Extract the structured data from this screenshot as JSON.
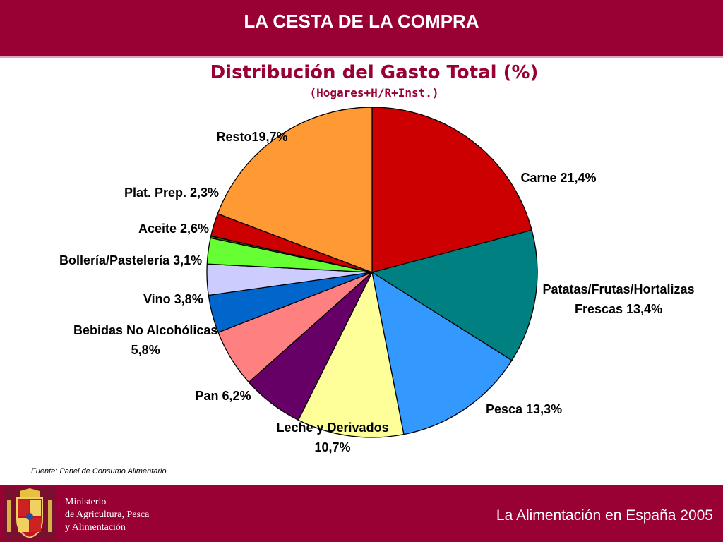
{
  "header": {
    "title": "LA CESTA DE LA COMPRA"
  },
  "chart_data": {
    "type": "pie",
    "title": "Distribución del Gasto Total (%)",
    "subtitle": "(Hogares+H/R+Inst.)",
    "slices": [
      {
        "label": "Carne 21,4%",
        "value": 21.4,
        "color": "#CC0000"
      },
      {
        "label": "Patatas/Frutas/Hortalizas Frescas 13,4%",
        "label_lines": [
          "Patatas/Frutas/Hortalizas",
          "Frescas 13,4%"
        ],
        "value": 13.4,
        "color": "#008080"
      },
      {
        "label": "Pesca 13,3%",
        "value": 13.3,
        "color": "#3399FF"
      },
      {
        "label": "Leche y Derivados 10,7%",
        "label_lines": [
          "Leche y Derivados",
          "10,7%"
        ],
        "value": 10.7,
        "color": "#FFFF99"
      },
      {
        "label": "Pan 6,2%",
        "value": 6.2,
        "color": "#660066"
      },
      {
        "label": "Bebidas No Alcohólicas 5,8%",
        "label_lines": [
          "Bebidas No Alcohólicas",
          "5,8%"
        ],
        "value": 5.8,
        "color": "#FF8080"
      },
      {
        "label": "Vino 3,8%",
        "value": 3.8,
        "color": "#0066CC"
      },
      {
        "label": "Bollería/Pastelería 3,1%",
        "value": 3.1,
        "color": "#CCCCFF"
      },
      {
        "label": "Aceite 2,6%",
        "value": 2.6,
        "color": "#66FF33"
      },
      {
        "label": "",
        "value": 0.2,
        "color": "#336600"
      },
      {
        "label": "Plat. Prep. 2,3%",
        "value": 2.3,
        "color": "#CC0000"
      },
      {
        "label": "Resto19,7%",
        "value": 19.7,
        "color": "#FF9933"
      }
    ]
  },
  "source_note": "Fuente: Panel de Consumo Alimentario",
  "footer": {
    "ministry_lines": [
      "Ministerio",
      "de Agricultura, Pesca",
      "y Alimentación"
    ],
    "title": "La Alimentación en España 2005"
  },
  "colors": {
    "brand": "#990033"
  }
}
